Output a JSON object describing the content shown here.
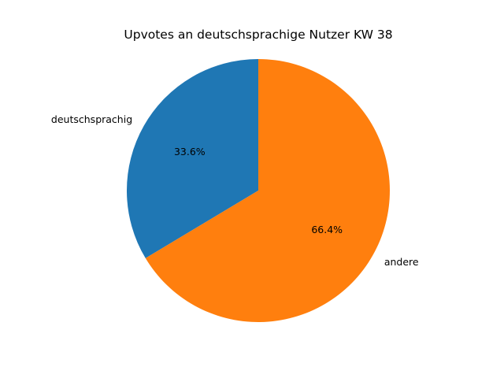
{
  "chart_data": {
    "type": "pie",
    "title": "Upvotes an deutschsprachige Nutzer KW 38",
    "slices": [
      {
        "label": "deutschsprachig",
        "percent": 33.6,
        "percent_label": "33.6%",
        "color": "#1f77b4"
      },
      {
        "label": "andere",
        "percent": 66.4,
        "percent_label": "66.4%",
        "color": "#ff7f0e"
      }
    ],
    "start_angle_deg": 90,
    "direction": "counterclockwise",
    "legend": "none"
  }
}
